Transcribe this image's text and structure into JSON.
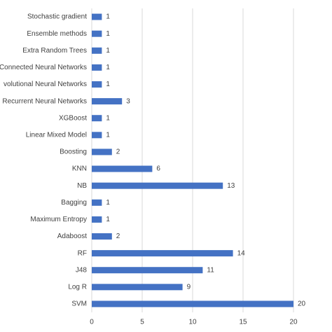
{
  "chart_data": {
    "type": "hbar",
    "categories": [
      "Stochastic gradient",
      "Ensemble methods",
      "Extra Random Trees",
      "Connected Neural Networks",
      "volutional Neural Networks",
      "Recurrent Neural Networks",
      "XGBoost",
      "Linear Mixed Model",
      "Boosting",
      "KNN",
      "NB",
      "Bagging",
      "Maximum Entropy",
      "Adaboost",
      "RF",
      "J48",
      "Log R",
      "SVM"
    ],
    "values": [
      1,
      1,
      1,
      1,
      1,
      3,
      1,
      1,
      2,
      6,
      13,
      1,
      1,
      2,
      14,
      11,
      9,
      20
    ],
    "color": "#4472c4",
    "xlim": [
      0,
      20
    ],
    "xticks": [
      0,
      5,
      10,
      15,
      20
    ],
    "grid": true
  }
}
